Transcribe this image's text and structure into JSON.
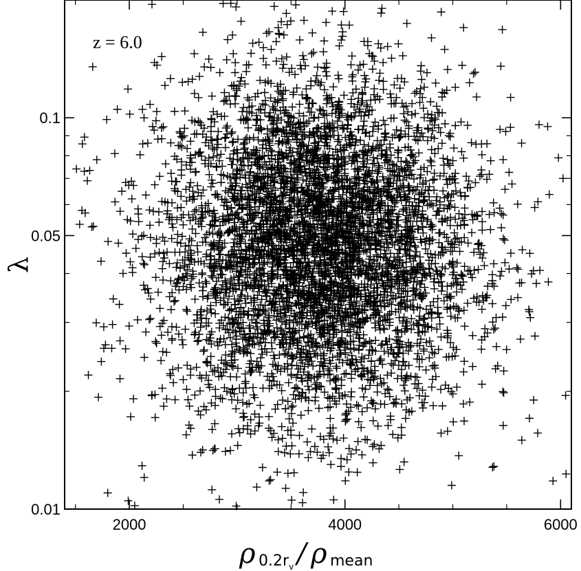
{
  "chart_data": {
    "type": "scatter",
    "title": "",
    "annotation": "z = 6.0",
    "xlabel": {
      "rho": "ρ",
      "sub_num": "0.2r",
      "sub_sub": "v",
      "slash": "/",
      "rho2": "ρ",
      "sub_den": "mean"
    },
    "ylabel": "λ",
    "xlim": [
      1400,
      6100
    ],
    "ylim": [
      0.01,
      0.2
    ],
    "yscale": "log",
    "xticks": [
      {
        "value": 2000,
        "label": "2000"
      },
      {
        "value": 4000,
        "label": "4000"
      },
      {
        "value": 6000,
        "label": "6000"
      }
    ],
    "yticks": [
      {
        "value": 0.01,
        "label": "0.01"
      },
      {
        "value": 0.05,
        "label": "0.05"
      },
      {
        "value": 0.1,
        "label": "0.1"
      }
    ],
    "marker": "plus",
    "grid": false,
    "legend": false,
    "series": [
      {
        "points_sample": [
          [
            1510,
            0.074
          ],
          [
            1560,
            0.058
          ],
          [
            1620,
            0.022
          ],
          [
            1660,
            0.135
          ],
          [
            1790,
            0.099
          ],
          [
            1800,
            0.011
          ],
          [
            1990,
            0.0105
          ],
          [
            2050,
            0.0102
          ],
          [
            2210,
            0.195
          ],
          [
            2220,
            0.198
          ],
          [
            2870,
            0.196
          ],
          [
            2990,
            0.192
          ],
          [
            3010,
            0.199
          ],
          [
            3450,
            0.05
          ],
          [
            3900,
            0.05
          ],
          [
            4000,
            0.045
          ],
          [
            4200,
            0.04
          ],
          [
            4350,
            0.01
          ],
          [
            5100,
            0.17
          ],
          [
            5460,
            0.168
          ],
          [
            5800,
            0.096
          ],
          [
            5880,
            0.095
          ],
          [
            5760,
            0.059
          ],
          [
            5790,
            0.061
          ],
          [
            5930,
            0.0118
          ],
          [
            6050,
            0.0123
          ],
          [
            5980,
            0.079
          ],
          [
            5640,
            0.015
          ],
          [
            5750,
            0.019
          ],
          [
            4990,
            0.0115
          ]
        ],
        "distribution": {
          "n_points": 5200,
          "x_center": 3750,
          "x_spread": 720,
          "log10_lambda_center": -1.33,
          "log10_lambda_spread": 0.22
        }
      }
    ]
  }
}
